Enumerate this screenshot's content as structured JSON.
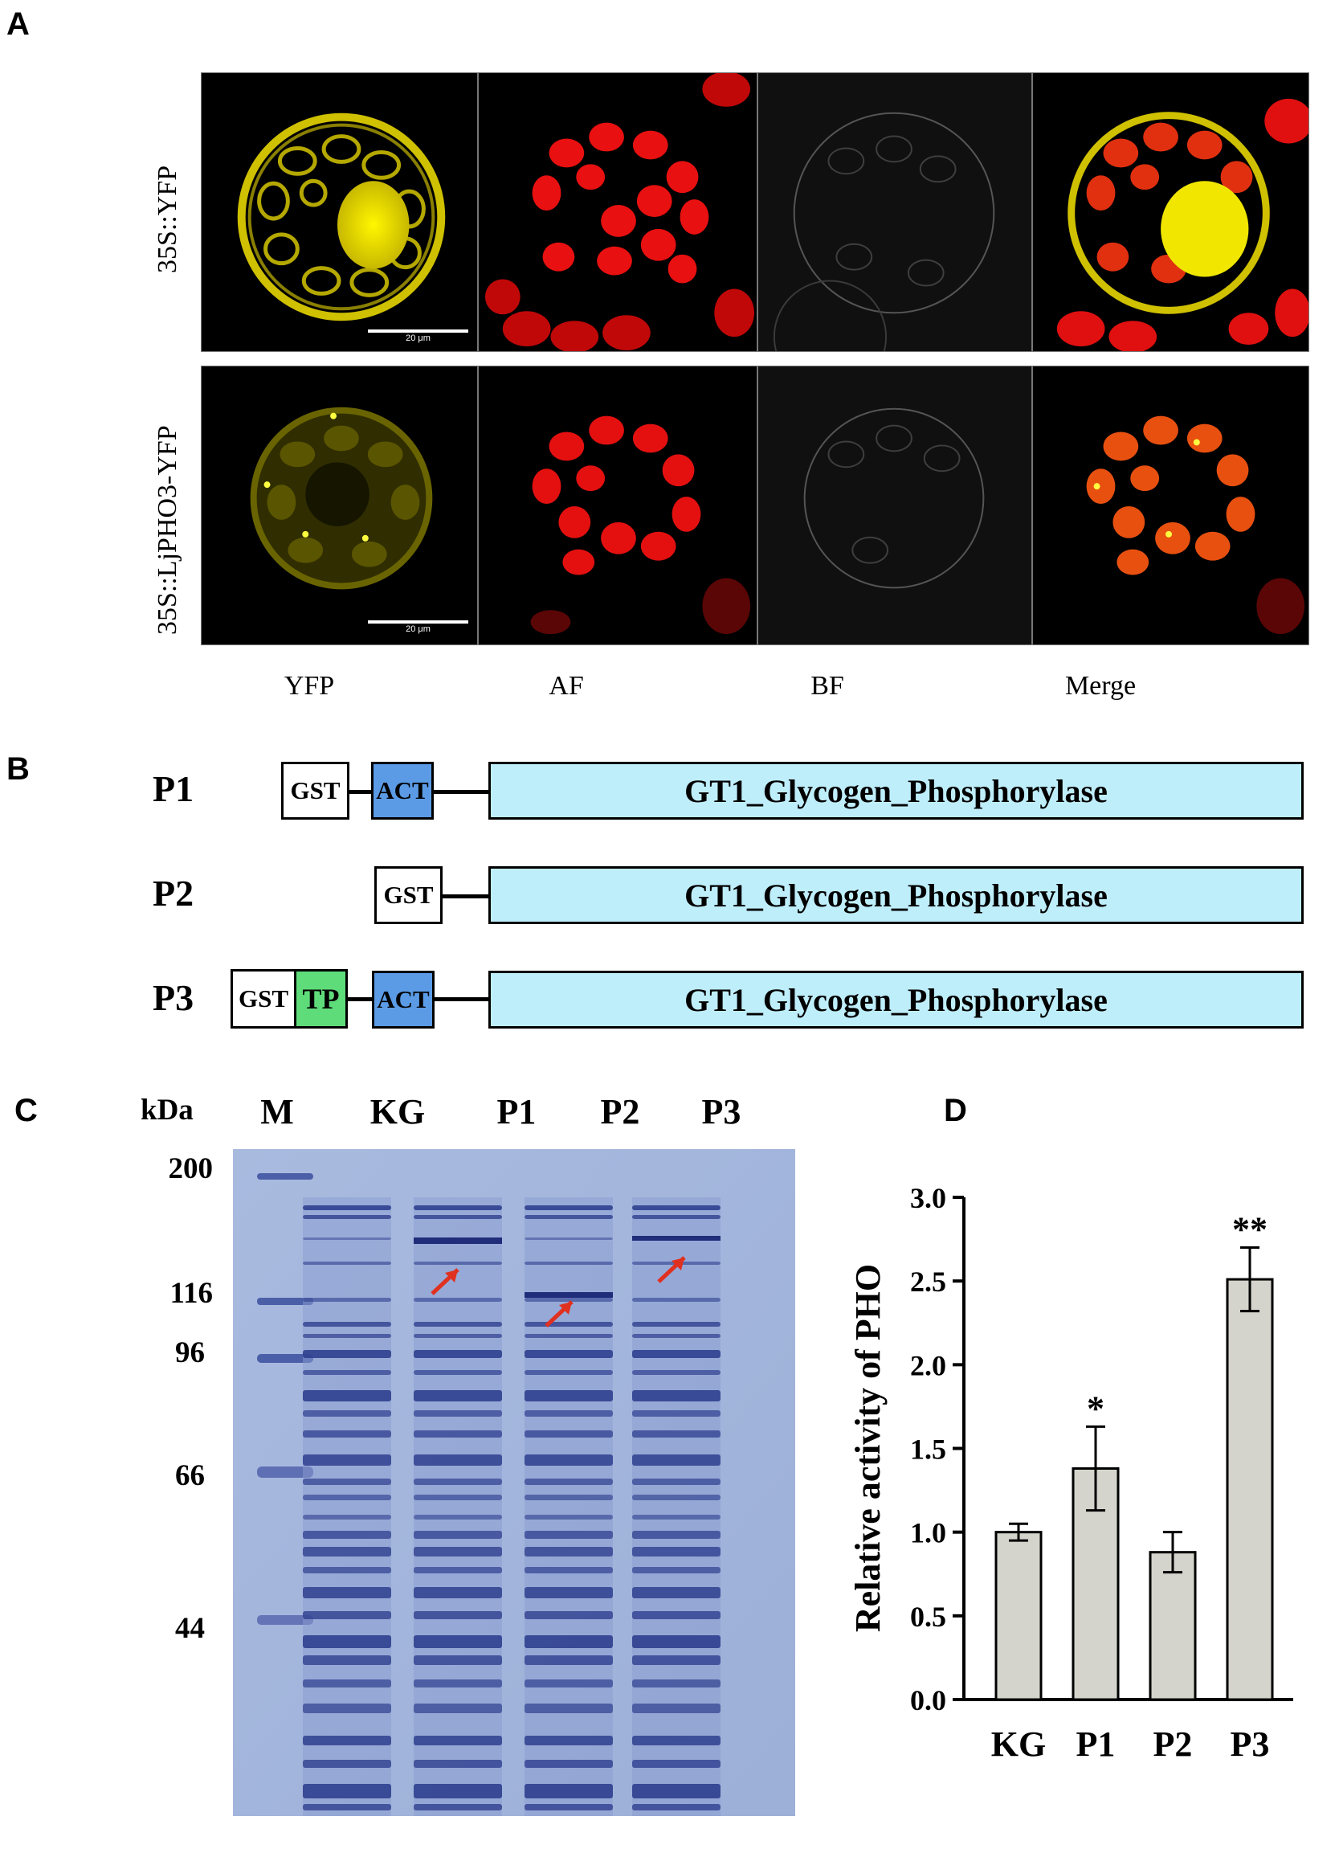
{
  "panels": {
    "a": "A",
    "b": "B",
    "c": "C",
    "d": "D"
  },
  "panel_a": {
    "rows": [
      "35S::YFP",
      "35S::LjPHO3-YFP"
    ],
    "columns": [
      "YFP",
      "AF",
      "BF",
      "Merge"
    ],
    "scale_bar": "20 μm"
  },
  "panel_b": {
    "constructs": [
      {
        "label": "P1",
        "tags": [
          "GST",
          "ACT"
        ],
        "domain": "GT1_Glycogen_Phosphorylase"
      },
      {
        "label": "P2",
        "tags": [
          "GST"
        ],
        "domain": "GT1_Glycogen_Phosphorylase"
      },
      {
        "label": "P3",
        "tags": [
          "GST",
          "TP",
          "ACT"
        ],
        "domain": "GT1_Glycogen_Phosphorylase"
      }
    ],
    "colors": {
      "GST": "#ffffff",
      "TP": "#5fdc7a",
      "ACT": "#5b9be6",
      "domain": "#bfeefb"
    }
  },
  "panel_c": {
    "unit": "kDa",
    "lanes": [
      "M",
      "KG",
      "P1",
      "P2",
      "P3"
    ],
    "markers": [
      "200",
      "116",
      "96",
      "66",
      "44"
    ]
  },
  "chart_data": {
    "type": "bar",
    "categories": [
      "KG",
      "P1",
      "P2",
      "P3"
    ],
    "values": [
      1.0,
      1.38,
      0.88,
      2.51
    ],
    "errors": [
      0.05,
      0.25,
      0.12,
      0.19
    ],
    "significance": [
      "",
      "*",
      "",
      "**"
    ],
    "ylabel": "Relative activity of PHO",
    "ylim": [
      0,
      3.0
    ],
    "yticks": [
      "0.0",
      "0.5",
      "1.0",
      "1.5",
      "2.0",
      "2.5",
      "3.0"
    ],
    "bar_color": "#d4d4cc"
  }
}
